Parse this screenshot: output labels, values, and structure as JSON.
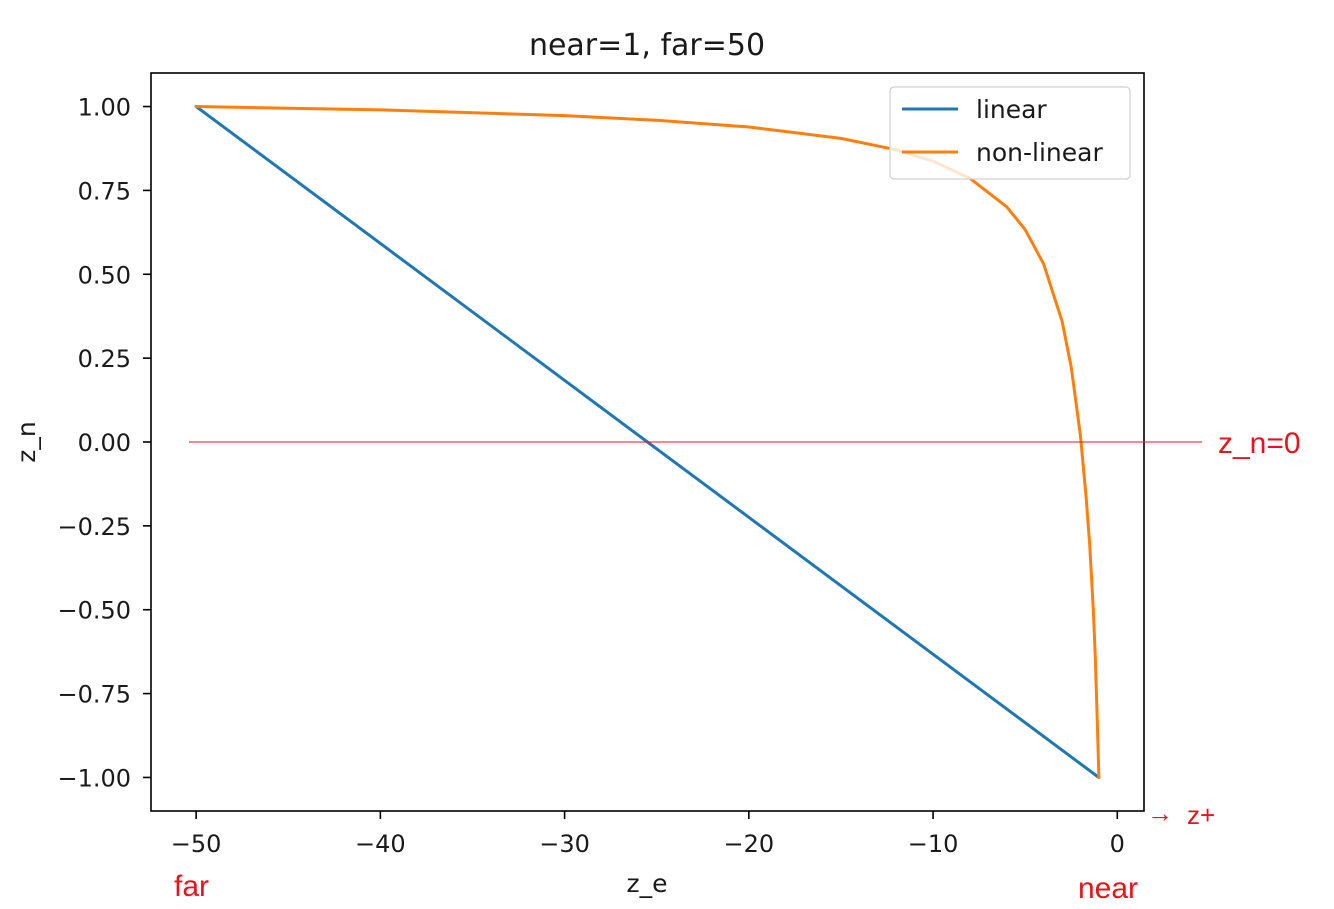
{
  "chart_data": {
    "type": "line",
    "title": "near=1, far=50",
    "xlabel": "z_e",
    "ylabel": "z_n",
    "xlim": [
      -52.45,
      1.45
    ],
    "ylim": [
      -1.1,
      1.1
    ],
    "xticks": [
      -50,
      -40,
      -30,
      -20,
      -10,
      0
    ],
    "xtick_labels": [
      "−50",
      "−40",
      "−30",
      "−20",
      "−10",
      "0"
    ],
    "yticks": [
      1.0,
      0.75,
      0.5,
      0.25,
      0.0,
      -0.25,
      -0.5,
      -0.75,
      -1.0
    ],
    "ytick_labels": [
      "1.00",
      "0.75",
      "0.50",
      "0.25",
      "0.00",
      "−0.25",
      "−0.50",
      "−0.75",
      "−1.00"
    ],
    "grid": false,
    "legend_position": "top-right",
    "near": 1,
    "far": 50,
    "series": [
      {
        "name": "linear",
        "color": "#1f77b4",
        "x": [
          -50,
          -1
        ],
        "y": [
          1.0,
          -1.0
        ]
      },
      {
        "name": "non-linear",
        "color": "#ff7f0e",
        "x": [
          -50,
          -40,
          -30,
          -25,
          -20,
          -15,
          -12,
          -10,
          -8,
          -6,
          -5,
          -4,
          -3,
          -2.5,
          -2,
          -1.7,
          -1.5,
          -1.3,
          -1.2,
          -1.1,
          -1
        ],
        "y": [
          1.0,
          0.99,
          0.973,
          0.959,
          0.939,
          0.905,
          0.871,
          0.837,
          0.786,
          0.701,
          0.633,
          0.531,
          0.361,
          0.224,
          0.02,
          -0.16,
          -0.306,
          -0.499,
          -0.633,
          -0.803,
          -1.0
        ]
      }
    ]
  },
  "annotations": {
    "zero_line_label": "z_n=0",
    "far_label": "far",
    "near_label": "near",
    "direction_arrow": "→",
    "direction_label": "z+",
    "color": "#e8141c"
  }
}
